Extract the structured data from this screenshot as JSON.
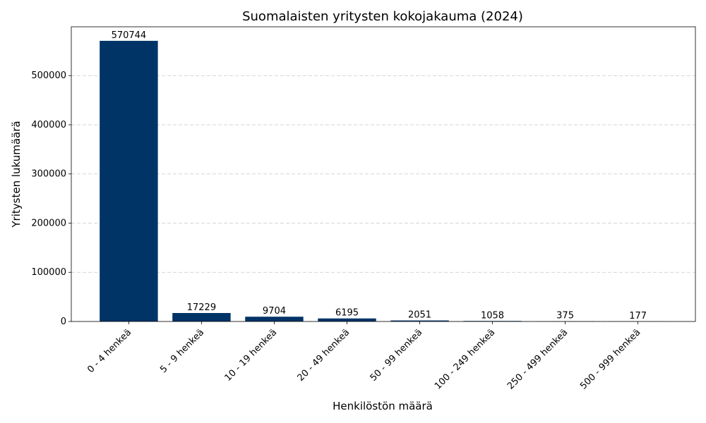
{
  "chart_data": {
    "type": "bar",
    "title": "Suomalaisten yritysten kokojakauma (2024)",
    "x_label": "Henkilöstön määrä",
    "y_label": "Yritysten lukumäärä",
    "categories": [
      "0 - 4 henkeä",
      "5 - 9 henkeä",
      "10 - 19 henkeä",
      "20 - 49 henkeä",
      "50 - 99 henkeä",
      "100 - 249 henkeä",
      "250 - 499 henkeä",
      "500 - 999 henkeä"
    ],
    "values": [
      570744,
      17229,
      9704,
      6195,
      2051,
      1058,
      375,
      177
    ],
    "color": "#003366",
    "ylim": [
      0,
      599281
    ],
    "yticks": [
      0,
      100000,
      200000,
      300000,
      400000,
      500000
    ],
    "grid": true
  }
}
